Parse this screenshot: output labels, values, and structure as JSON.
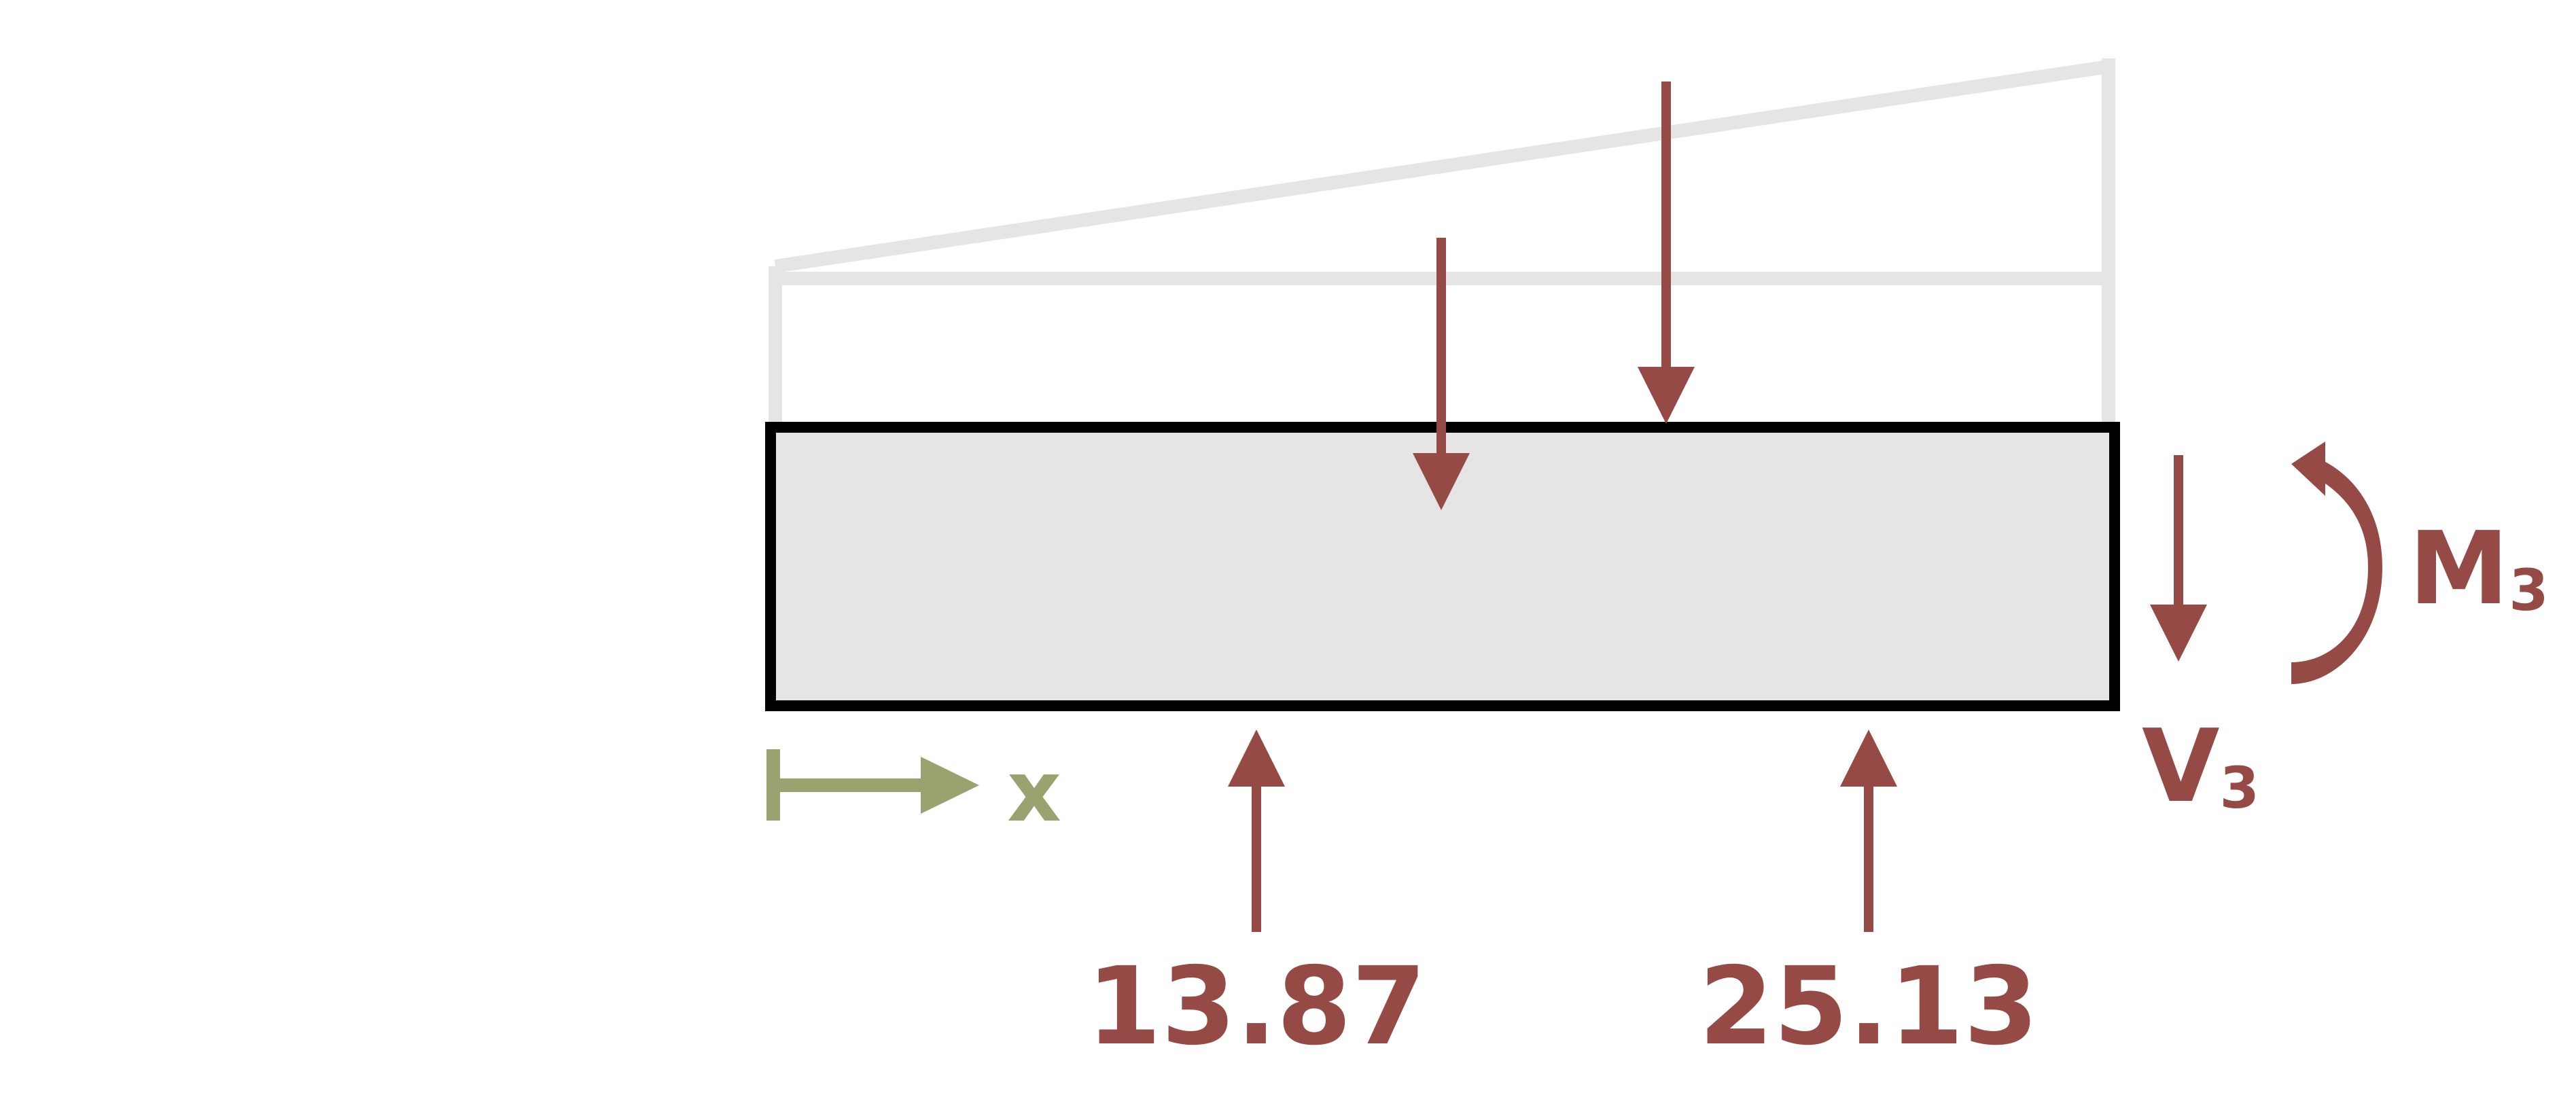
{
  "colors": {
    "background": "#ffffff",
    "beam_fill": "#e5e5e5",
    "beam_outline": "#000000",
    "load_profile": "#e5e5e5",
    "force": "#954a45",
    "axis": "#9aa36f"
  },
  "labels": {
    "axis": "x",
    "moment": "M",
    "moment_sub": "3",
    "shear": "V",
    "shear_sub": "3",
    "reaction_left": "13.87",
    "reaction_right": "25.13"
  },
  "icons": {
    "moment": "curved-arrow-counterclockwise-icon",
    "axis": "right-arrow-icon"
  }
}
